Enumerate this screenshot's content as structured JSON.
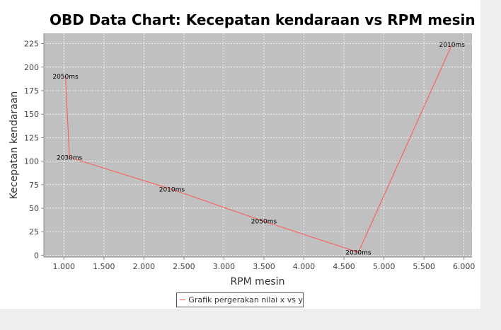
{
  "chart_data": {
    "type": "line",
    "title": "OBD Data Chart: Kecepatan kendaraan vs RPM mesin",
    "xlabel": "RPM mesin",
    "ylabel": "Kecepatan kendaraan",
    "xlim": [
      750,
      6100
    ],
    "ylim": [
      -2,
      236
    ],
    "xticks": [
      1000,
      1500,
      2000,
      2500,
      3000,
      3500,
      4000,
      4500,
      5000,
      5500,
      6000
    ],
    "xtick_labels": [
      "1.000",
      "1.500",
      "2.000",
      "2.500",
      "3.000",
      "3.500",
      "4.000",
      "4.500",
      "5.000",
      "5.500",
      "6.000"
    ],
    "yticks": [
      0,
      25,
      50,
      75,
      100,
      125,
      150,
      175,
      200,
      225
    ],
    "ytick_labels": [
      "0",
      "25",
      "50",
      "75",
      "100",
      "125",
      "150",
      "175",
      "200",
      "225"
    ],
    "grid": true,
    "legend": "bottom-center",
    "series": [
      {
        "name": "Grafik pergerakan nilai x vs y",
        "color": "#ff5555",
        "points": [
          {
            "x": 5850,
            "y": 224,
            "label": "2010ms"
          },
          {
            "x": 4680,
            "y": 3,
            "label": "2030ms"
          },
          {
            "x": 3500,
            "y": 36,
            "label": "2050ms"
          },
          {
            "x": 2350,
            "y": 70,
            "label": "2010ms"
          },
          {
            "x": 1070,
            "y": 104,
            "label": "2030ms"
          },
          {
            "x": 1020,
            "y": 190,
            "label": "2050ms"
          }
        ]
      }
    ]
  },
  "colors": {
    "plot_background": "#c0c0c0",
    "grid": "#ffffff",
    "series": "#ff5555"
  }
}
